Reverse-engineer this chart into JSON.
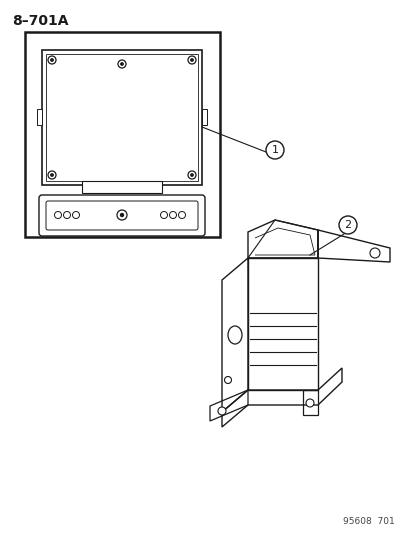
{
  "title": "8–701A",
  "background_color": "#ffffff",
  "line_color": "#1a1a1a",
  "gray_color": "#aaaaaa",
  "label1": "1",
  "label2": "2",
  "footer": "95608  701",
  "fig_width": 4.14,
  "fig_height": 5.33,
  "dpi": 100
}
